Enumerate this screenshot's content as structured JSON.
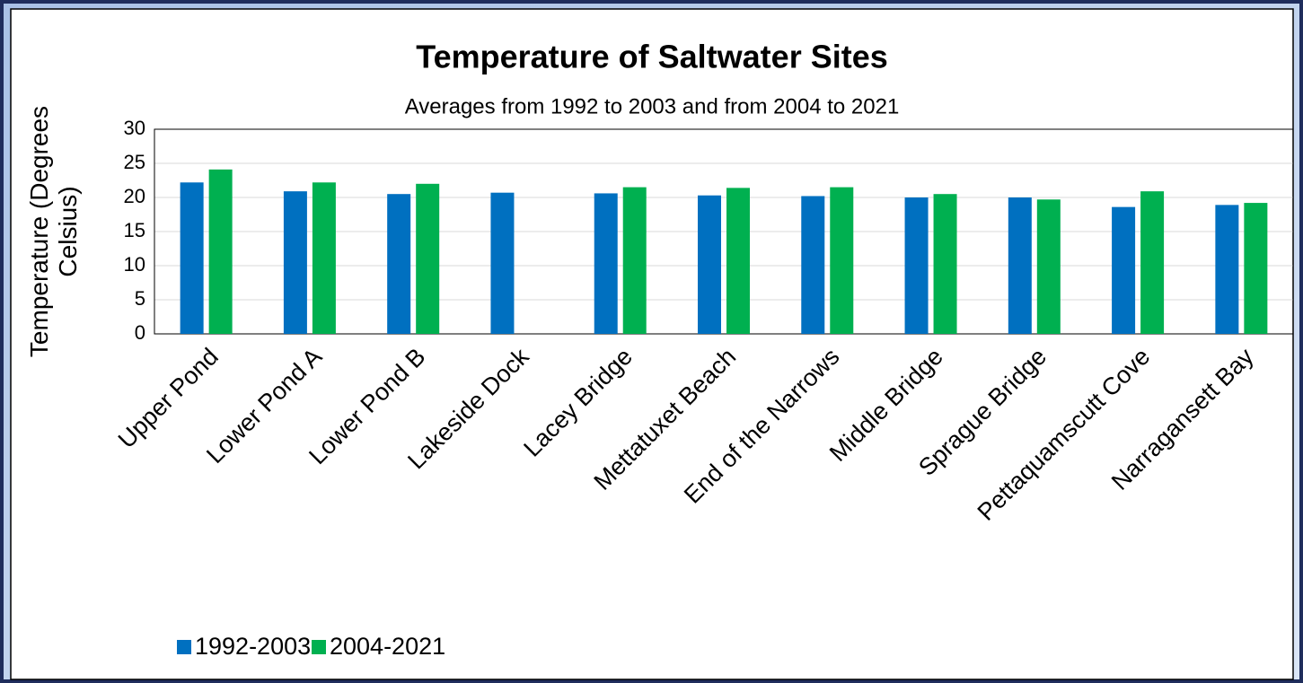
{
  "chart_data": {
    "type": "bar",
    "title": "Temperature of Saltwater Sites",
    "subtitle": "Averages from 1992 to 2003 and from 2004 to 2021",
    "y_label": "Temperature (Degrees Celsius)",
    "categories": [
      "Upper Pond",
      "Lower Pond A",
      "Lower Pond B",
      "Lakeside Dock",
      "Lacey Bridge",
      "Mettatuxet Beach",
      "End of the Narrows",
      "Middle Bridge",
      "Sprague Bridge",
      "Pettaquamscutt Cove",
      "Narragansett Bay"
    ],
    "series": [
      {
        "name": "1992-2003",
        "color": "#0070c0",
        "values": [
          22.2,
          20.9,
          20.5,
          20.7,
          20.6,
          20.3,
          20.2,
          20.0,
          20.0,
          18.6,
          18.9
        ]
      },
      {
        "name": "2004-2021",
        "color": "#00b050",
        "values": [
          24.1,
          22.2,
          22.0,
          null,
          21.5,
          21.4,
          21.5,
          20.5,
          19.7,
          20.9,
          19.2
        ]
      }
    ],
    "ylim": [
      0,
      30
    ],
    "yticks": [
      0,
      5,
      10,
      15,
      20,
      25,
      30
    ],
    "grid": true,
    "legend": "bottom"
  }
}
